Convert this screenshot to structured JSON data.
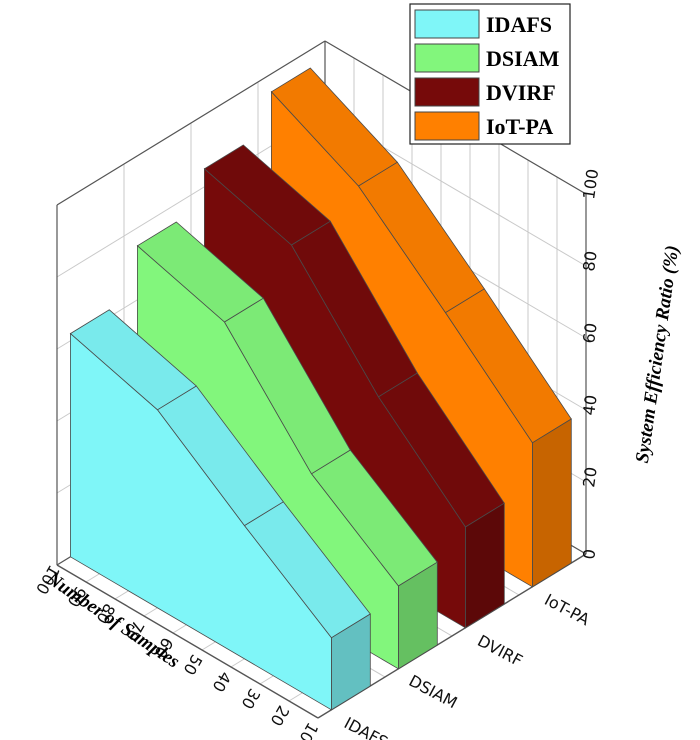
{
  "chart_data": {
    "type": "area",
    "title": "",
    "xlabel": "Number of Samples",
    "ylabel": "",
    "zlabel": "System Efficiency Ratio (%)",
    "x_ticks": [
      "10",
      "20",
      "30",
      "40",
      "50",
      "60",
      "70",
      "80",
      "90",
      "100"
    ],
    "z_ticks": [
      "0",
      "20",
      "40",
      "60",
      "80",
      "100"
    ],
    "x": [
      10,
      40,
      70,
      100
    ],
    "categories": [
      "IDAFS",
      "DSIAM",
      "DVIRF",
      "IoT-PA"
    ],
    "zlim": [
      0,
      100
    ],
    "series": [
      {
        "name": "IDAFS",
        "color": "#7ff6f8",
        "values": [
          20,
          37,
          55,
          62
        ]
      },
      {
        "name": "DSIAM",
        "color": "#82f67c",
        "values": [
          23,
          40,
          68,
          75
        ]
      },
      {
        "name": "DVIRF",
        "color": "#760a0a",
        "values": [
          28,
          50,
          78,
          85
        ]
      },
      {
        "name": "IoT-PA",
        "color": "#ff8000",
        "values": [
          40,
          62,
          83,
          95
        ]
      }
    ],
    "legend_position": "top",
    "grid": true
  }
}
